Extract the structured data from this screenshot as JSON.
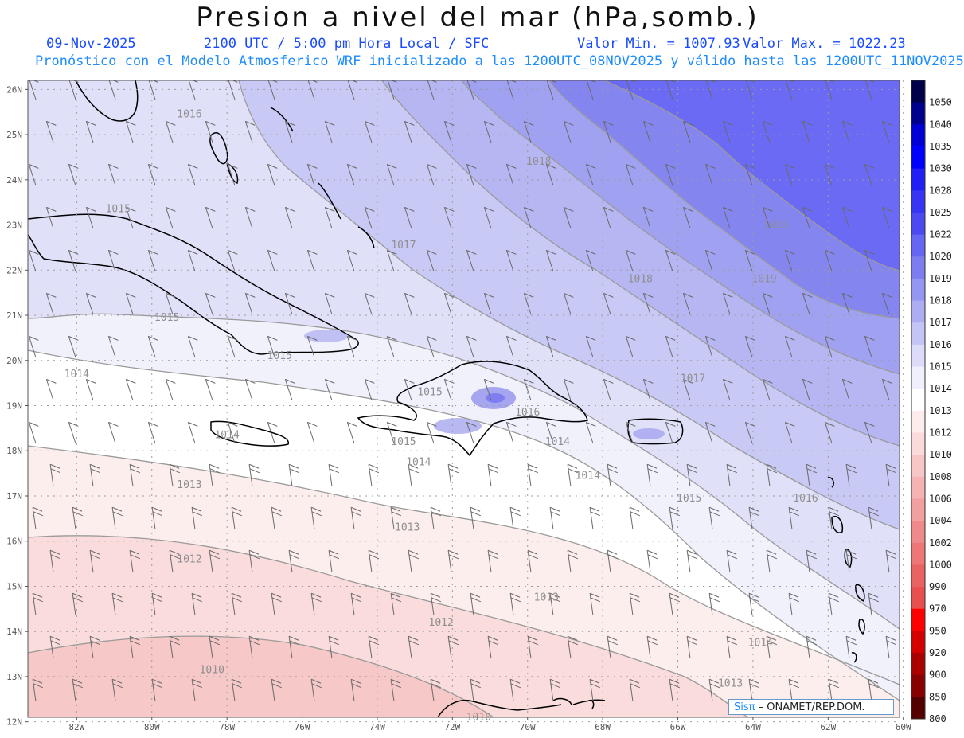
{
  "header": {
    "title": "Presion a nivel del mar (hPa,somb.)",
    "date": "09-Nov-2025",
    "time": "2100 UTC / 5:00 pm Hora Local / SFC",
    "min": "Valor Min. = 1007.93",
    "max": "Valor Max. = 1022.23",
    "forecast": "Pronóstico con el Modelo Atmosferico WRF inicializado a las 1200UTC_08NOV2025 y válido hasta las  1200UTC_11NOV2025"
  },
  "axes": {
    "lat_labels": [
      "26N",
      "25N",
      "24N",
      "23N",
      "22N",
      "21N",
      "20N",
      "19N",
      "18N",
      "17N",
      "16N",
      "15N",
      "14N",
      "13N",
      "12N"
    ],
    "lon_labels": [
      "82W",
      "80W",
      "78W",
      "76W",
      "74W",
      "72W",
      "70W",
      "68W",
      "66W",
      "64W",
      "62W",
      "60W"
    ]
  },
  "colorbar": {
    "levels": [
      "1050",
      "1040",
      "1035",
      "1030",
      "1028",
      "1025",
      "1022",
      "1020",
      "1019",
      "1018",
      "1017",
      "1016",
      "1015",
      "1014",
      "1013",
      "1012",
      "1010",
      "1008",
      "1006",
      "1004",
      "1002",
      "1000",
      "990",
      "970",
      "950",
      "920",
      "900",
      "850",
      "800"
    ],
    "colors": [
      "#00004a",
      "#00008f",
      "#0000d6",
      "#0000ff",
      "#1f1ff6",
      "#3535f3",
      "#4a4af0",
      "#6666f5",
      "#7d7df2",
      "#9595f2",
      "#adadf3",
      "#c4c4f6",
      "#dcdcf9",
      "#f0f0fc",
      "#ffffff",
      "#fcecec",
      "#fadada",
      "#f7c6c6",
      "#f5b3b3",
      "#f29f9f",
      "#f08a8a",
      "#ee7676",
      "#eb6262",
      "#e94f4f",
      "#ff0000",
      "#d40000",
      "#aa0000",
      "#880000",
      "#550000"
    ]
  },
  "isobars": [
    {
      "label": "1016",
      "lat": 25.45,
      "lon": -79.0
    },
    {
      "label": "1018",
      "lat": 24.4,
      "lon": -69.7
    },
    {
      "label": "1020",
      "lat": 23.0,
      "lon": -63.4
    },
    {
      "label": "1015",
      "lat": 23.35,
      "lon": -80.9
    },
    {
      "label": "1017",
      "lat": 22.55,
      "lon": -73.3
    },
    {
      "label": "1018",
      "lat": 21.8,
      "lon": -67.0
    },
    {
      "label": "1019",
      "lat": 21.8,
      "lon": -63.7
    },
    {
      "label": "1015",
      "lat": 20.95,
      "lon": -79.6
    },
    {
      "label": "1015",
      "lat": 20.1,
      "lon": -76.6
    },
    {
      "label": "1014",
      "lat": 19.7,
      "lon": -82.0
    },
    {
      "label": "1015",
      "lat": 19.3,
      "lon": -72.6
    },
    {
      "label": "1016",
      "lat": 18.85,
      "lon": -70.0
    },
    {
      "label": "1017",
      "lat": 19.6,
      "lon": -65.6
    },
    {
      "label": "1014",
      "lat": 18.35,
      "lon": -78.0
    },
    {
      "label": "1015",
      "lat": 18.2,
      "lon": -73.3
    },
    {
      "label": "1014",
      "lat": 18.2,
      "lon": -69.2
    },
    {
      "label": "1014",
      "lat": 17.75,
      "lon": -72.9
    },
    {
      "label": "1014",
      "lat": 17.45,
      "lon": -68.4
    },
    {
      "label": "1015",
      "lat": 16.95,
      "lon": -65.7
    },
    {
      "label": "1016",
      "lat": 16.95,
      "lon": -62.6
    },
    {
      "label": "1013",
      "lat": 17.25,
      "lon": -79.0
    },
    {
      "label": "1013",
      "lat": 16.3,
      "lon": -73.2
    },
    {
      "label": "1012",
      "lat": 15.6,
      "lon": -79.0
    },
    {
      "label": "1013",
      "lat": 14.75,
      "lon": -69.5
    },
    {
      "label": "1012",
      "lat": 14.2,
      "lon": -72.3
    },
    {
      "label": "1014",
      "lat": 13.75,
      "lon": -63.8
    },
    {
      "label": "1010",
      "lat": 13.15,
      "lon": -78.4
    },
    {
      "label": "1013",
      "lat": 12.85,
      "lon": -64.6
    },
    {
      "label": "1010",
      "lat": 12.1,
      "lon": -71.3
    }
  ],
  "credit": {
    "sis": "Sisπ",
    "org": "–  ONAMET/REP.DOM."
  }
}
